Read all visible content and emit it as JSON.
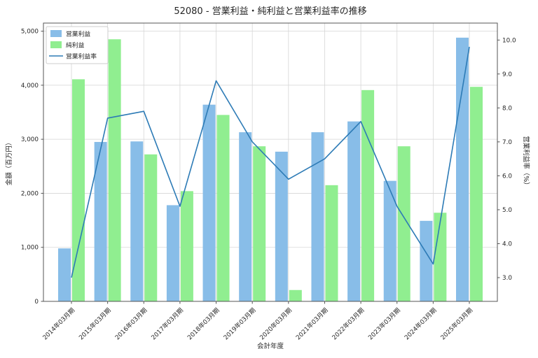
{
  "chart_data": {
    "type": "bar",
    "title": "52080 - 営業利益・純利益と営業利益率の推移",
    "xlabel": "会計年度",
    "ylabel_left": "金額（百万円）",
    "ylabel_right": "営業利益率（%）",
    "categories": [
      "2014年03月期",
      "2015年03月期",
      "2016年03月期",
      "2017年03月期",
      "2018年03月期",
      "2019年03月期",
      "2020年03月期",
      "2021年03月期",
      "2022年03月期",
      "2023年03月期",
      "2024年03月期",
      "2025年03月期"
    ],
    "series": [
      {
        "key": "operating-profit",
        "name": "営業利益",
        "kind": "bar",
        "axis": "left",
        "color": "#88bde8",
        "values": [
          980,
          2950,
          2960,
          1780,
          3640,
          3130,
          2770,
          3130,
          3330,
          2230,
          1490,
          4880
        ]
      },
      {
        "key": "net-profit",
        "name": "純利益",
        "kind": "bar",
        "axis": "left",
        "color": "#90ee90",
        "values": [
          4110,
          4850,
          2720,
          2040,
          3450,
          2870,
          210,
          2150,
          3910,
          2870,
          1640,
          3970
        ]
      },
      {
        "key": "operating-margin",
        "name": "営業利益率",
        "kind": "line",
        "axis": "right",
        "color": "#2d7bb6",
        "values": [
          3.0,
          7.7,
          7.9,
          5.1,
          8.8,
          7.0,
          5.9,
          6.5,
          7.6,
          5.1,
          3.4,
          9.8
        ]
      }
    ],
    "left_axis": {
      "lim": [
        0,
        5150
      ],
      "ticks": [
        0,
        1000,
        2000,
        3000,
        4000,
        5000
      ],
      "tick_labels": [
        "0",
        "1,000",
        "2,000",
        "3,000",
        "4,000",
        "5,000"
      ]
    },
    "right_axis": {
      "lim": [
        2.3,
        10.5
      ],
      "ticks": [
        3,
        4,
        5,
        6,
        7,
        8,
        9,
        10
      ],
      "tick_labels": [
        "3.0",
        "4.0",
        "5.0",
        "6.0",
        "7.0",
        "8.0",
        "9.0",
        "10.0"
      ]
    },
    "grid": true,
    "legend_position": "upper left",
    "background": "#ffffff",
    "grid_color": "#d6d6d6",
    "spine_color": "#555555",
    "text_color": "#262626"
  }
}
